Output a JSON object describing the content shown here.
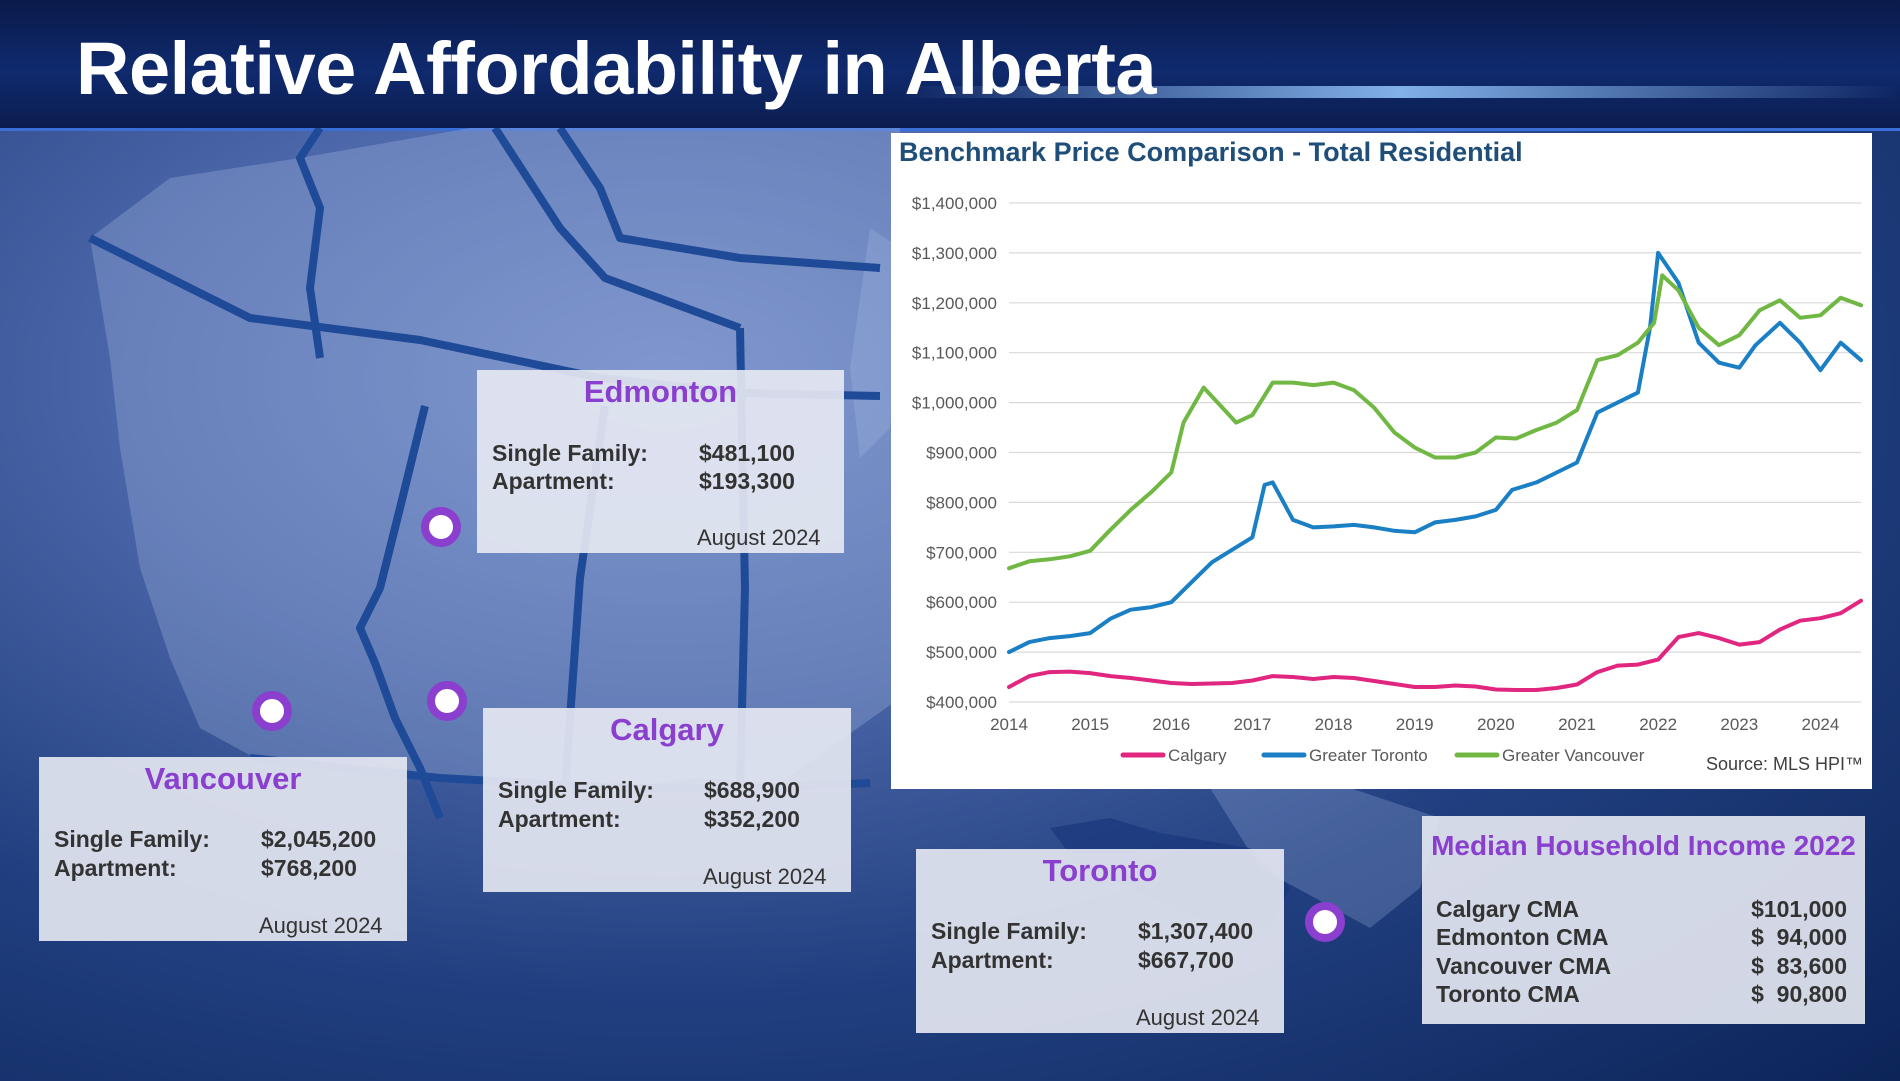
{
  "header": {
    "title": "Relative Affordability in Alberta"
  },
  "cities": {
    "edmonton": {
      "name": "Edmonton",
      "sf_label": "Single Family:",
      "sf_value": "$481,100",
      "apt_label": "Apartment:",
      "apt_value": "$193,300",
      "date": "August 2024"
    },
    "calgary": {
      "name": "Calgary",
      "sf_label": "Single Family:",
      "sf_value": "$688,900",
      "apt_label": "Apartment:",
      "apt_value": "$352,200",
      "date": "August 2024"
    },
    "vancouver": {
      "name": "Vancouver",
      "sf_label": "Single Family:",
      "sf_value": "$2,045,200",
      "apt_label": "Apartment:",
      "apt_value": "$768,200",
      "date": "August 2024"
    },
    "toronto": {
      "name": "Toronto",
      "sf_label": "Single Family:",
      "sf_value": "$1,307,400",
      "apt_label": "Apartment:",
      "apt_value": "$667,700",
      "date": "August 2024"
    }
  },
  "income": {
    "title": "Median Household Income 2022",
    "rows": [
      {
        "label": "Calgary CMA",
        "value": "$101,000"
      },
      {
        "label": "Edmonton CMA",
        "value": "$  94,000"
      },
      {
        "label": "Vancouver CMA",
        "value": "$  83,600"
      },
      {
        "label": "Toronto CMA",
        "value": "$  90,800"
      }
    ]
  },
  "colors": {
    "calgary": "#e0267f",
    "toronto": "#1a7fc4",
    "vancouver": "#70b843",
    "accent": "#8a3fcf",
    "chart_title": "#1f4e79"
  },
  "chart_data": {
    "type": "line",
    "title": "Benchmark Price Comparison - Total Residential",
    "xlabel": "",
    "ylabel": "",
    "source": "Source: MLS HPI™",
    "xlim": [
      2014,
      2024.5
    ],
    "ylim": [
      400000,
      1400000
    ],
    "yticks": [
      400000,
      500000,
      600000,
      700000,
      800000,
      900000,
      1000000,
      1100000,
      1200000,
      1300000,
      1400000
    ],
    "ytick_labels": [
      "$400,000",
      "$500,000",
      "$600,000",
      "$700,000",
      "$800,000",
      "$900,000",
      "$1,000,000",
      "$1,100,000",
      "$1,200,000",
      "$1,300,000",
      "$1,400,000"
    ],
    "xticks": [
      2014,
      2015,
      2016,
      2017,
      2018,
      2019,
      2020,
      2021,
      2022,
      2023,
      2024
    ],
    "xtick_labels": [
      "2014",
      "2015",
      "2016",
      "2017",
      "2018",
      "2019",
      "2020",
      "2021",
      "2022",
      "2023",
      "2024"
    ],
    "legend": [
      "Calgary",
      "Greater Toronto",
      "Greater Vancouver"
    ],
    "series": [
      {
        "name": "Calgary",
        "color": "#e0267f",
        "x": [
          2014,
          2014.25,
          2014.5,
          2014.75,
          2015,
          2015.25,
          2015.5,
          2015.75,
          2016,
          2016.25,
          2016.5,
          2016.75,
          2017,
          2017.25,
          2017.5,
          2017.75,
          2018,
          2018.25,
          2018.5,
          2018.75,
          2019,
          2019.25,
          2019.5,
          2019.75,
          2020,
          2020.25,
          2020.5,
          2020.75,
          2021,
          2021.25,
          2021.5,
          2021.75,
          2022,
          2022.25,
          2022.5,
          2022.75,
          2023,
          2023.25,
          2023.5,
          2023.75,
          2024,
          2024.25,
          2024.5
        ],
        "values": [
          430000,
          452000,
          460000,
          461000,
          458000,
          452000,
          448000,
          443000,
          438000,
          436000,
          437000,
          438000,
          443000,
          452000,
          450000,
          446000,
          450000,
          448000,
          442000,
          436000,
          430000,
          430000,
          433000,
          431000,
          425000,
          424000,
          424000,
          428000,
          435000,
          460000,
          473000,
          475000,
          485000,
          530000,
          538000,
          528000,
          515000,
          520000,
          545000,
          563000,
          568000,
          578000,
          603000
        ]
      },
      {
        "name": "Greater Toronto",
        "color": "#1a7fc4",
        "x": [
          2014,
          2014.25,
          2014.5,
          2014.75,
          2015,
          2015.25,
          2015.5,
          2015.75,
          2016,
          2016.25,
          2016.5,
          2016.75,
          2017,
          2017.15,
          2017.25,
          2017.5,
          2017.75,
          2018,
          2018.25,
          2018.5,
          2018.75,
          2019,
          2019.25,
          2019.5,
          2019.75,
          2020,
          2020.2,
          2020.5,
          2020.75,
          2021,
          2021.25,
          2021.5,
          2021.75,
          2021.9,
          2022,
          2022.25,
          2022.5,
          2022.75,
          2023,
          2023.2,
          2023.5,
          2023.75,
          2024,
          2024.25,
          2024.5
        ],
        "values": [
          500000,
          520000,
          528000,
          532000,
          538000,
          567000,
          585000,
          590000,
          600000,
          640000,
          680000,
          705000,
          730000,
          835000,
          840000,
          765000,
          750000,
          752000,
          755000,
          750000,
          743000,
          740000,
          760000,
          765000,
          772000,
          785000,
          825000,
          840000,
          860000,
          880000,
          980000,
          1000000,
          1020000,
          1150000,
          1300000,
          1240000,
          1120000,
          1080000,
          1070000,
          1115000,
          1160000,
          1120000,
          1065000,
          1120000,
          1085000
        ]
      },
      {
        "name": "Greater Vancouver",
        "color": "#70b843",
        "x": [
          2014,
          2014.25,
          2014.5,
          2014.75,
          2015,
          2015.25,
          2015.5,
          2015.75,
          2016,
          2016.15,
          2016.4,
          2016.6,
          2016.8,
          2017,
          2017.25,
          2017.5,
          2017.75,
          2018,
          2018.25,
          2018.5,
          2018.75,
          2019,
          2019.25,
          2019.5,
          2019.75,
          2020,
          2020.25,
          2020.5,
          2020.75,
          2021,
          2021.25,
          2021.5,
          2021.75,
          2021.95,
          2022.05,
          2022.25,
          2022.5,
          2022.75,
          2023,
          2023.25,
          2023.5,
          2023.75,
          2024,
          2024.25,
          2024.5
        ],
        "values": [
          668000,
          682000,
          686000,
          692000,
          703000,
          745000,
          785000,
          820000,
          860000,
          960000,
          1030000,
          995000,
          960000,
          975000,
          1040000,
          1040000,
          1035000,
          1040000,
          1025000,
          990000,
          940000,
          910000,
          890000,
          890000,
          900000,
          930000,
          928000,
          945000,
          960000,
          985000,
          1085000,
          1095000,
          1120000,
          1160000,
          1255000,
          1225000,
          1150000,
          1115000,
          1135000,
          1185000,
          1205000,
          1170000,
          1175000,
          1210000,
          1195000
        ]
      }
    ]
  }
}
